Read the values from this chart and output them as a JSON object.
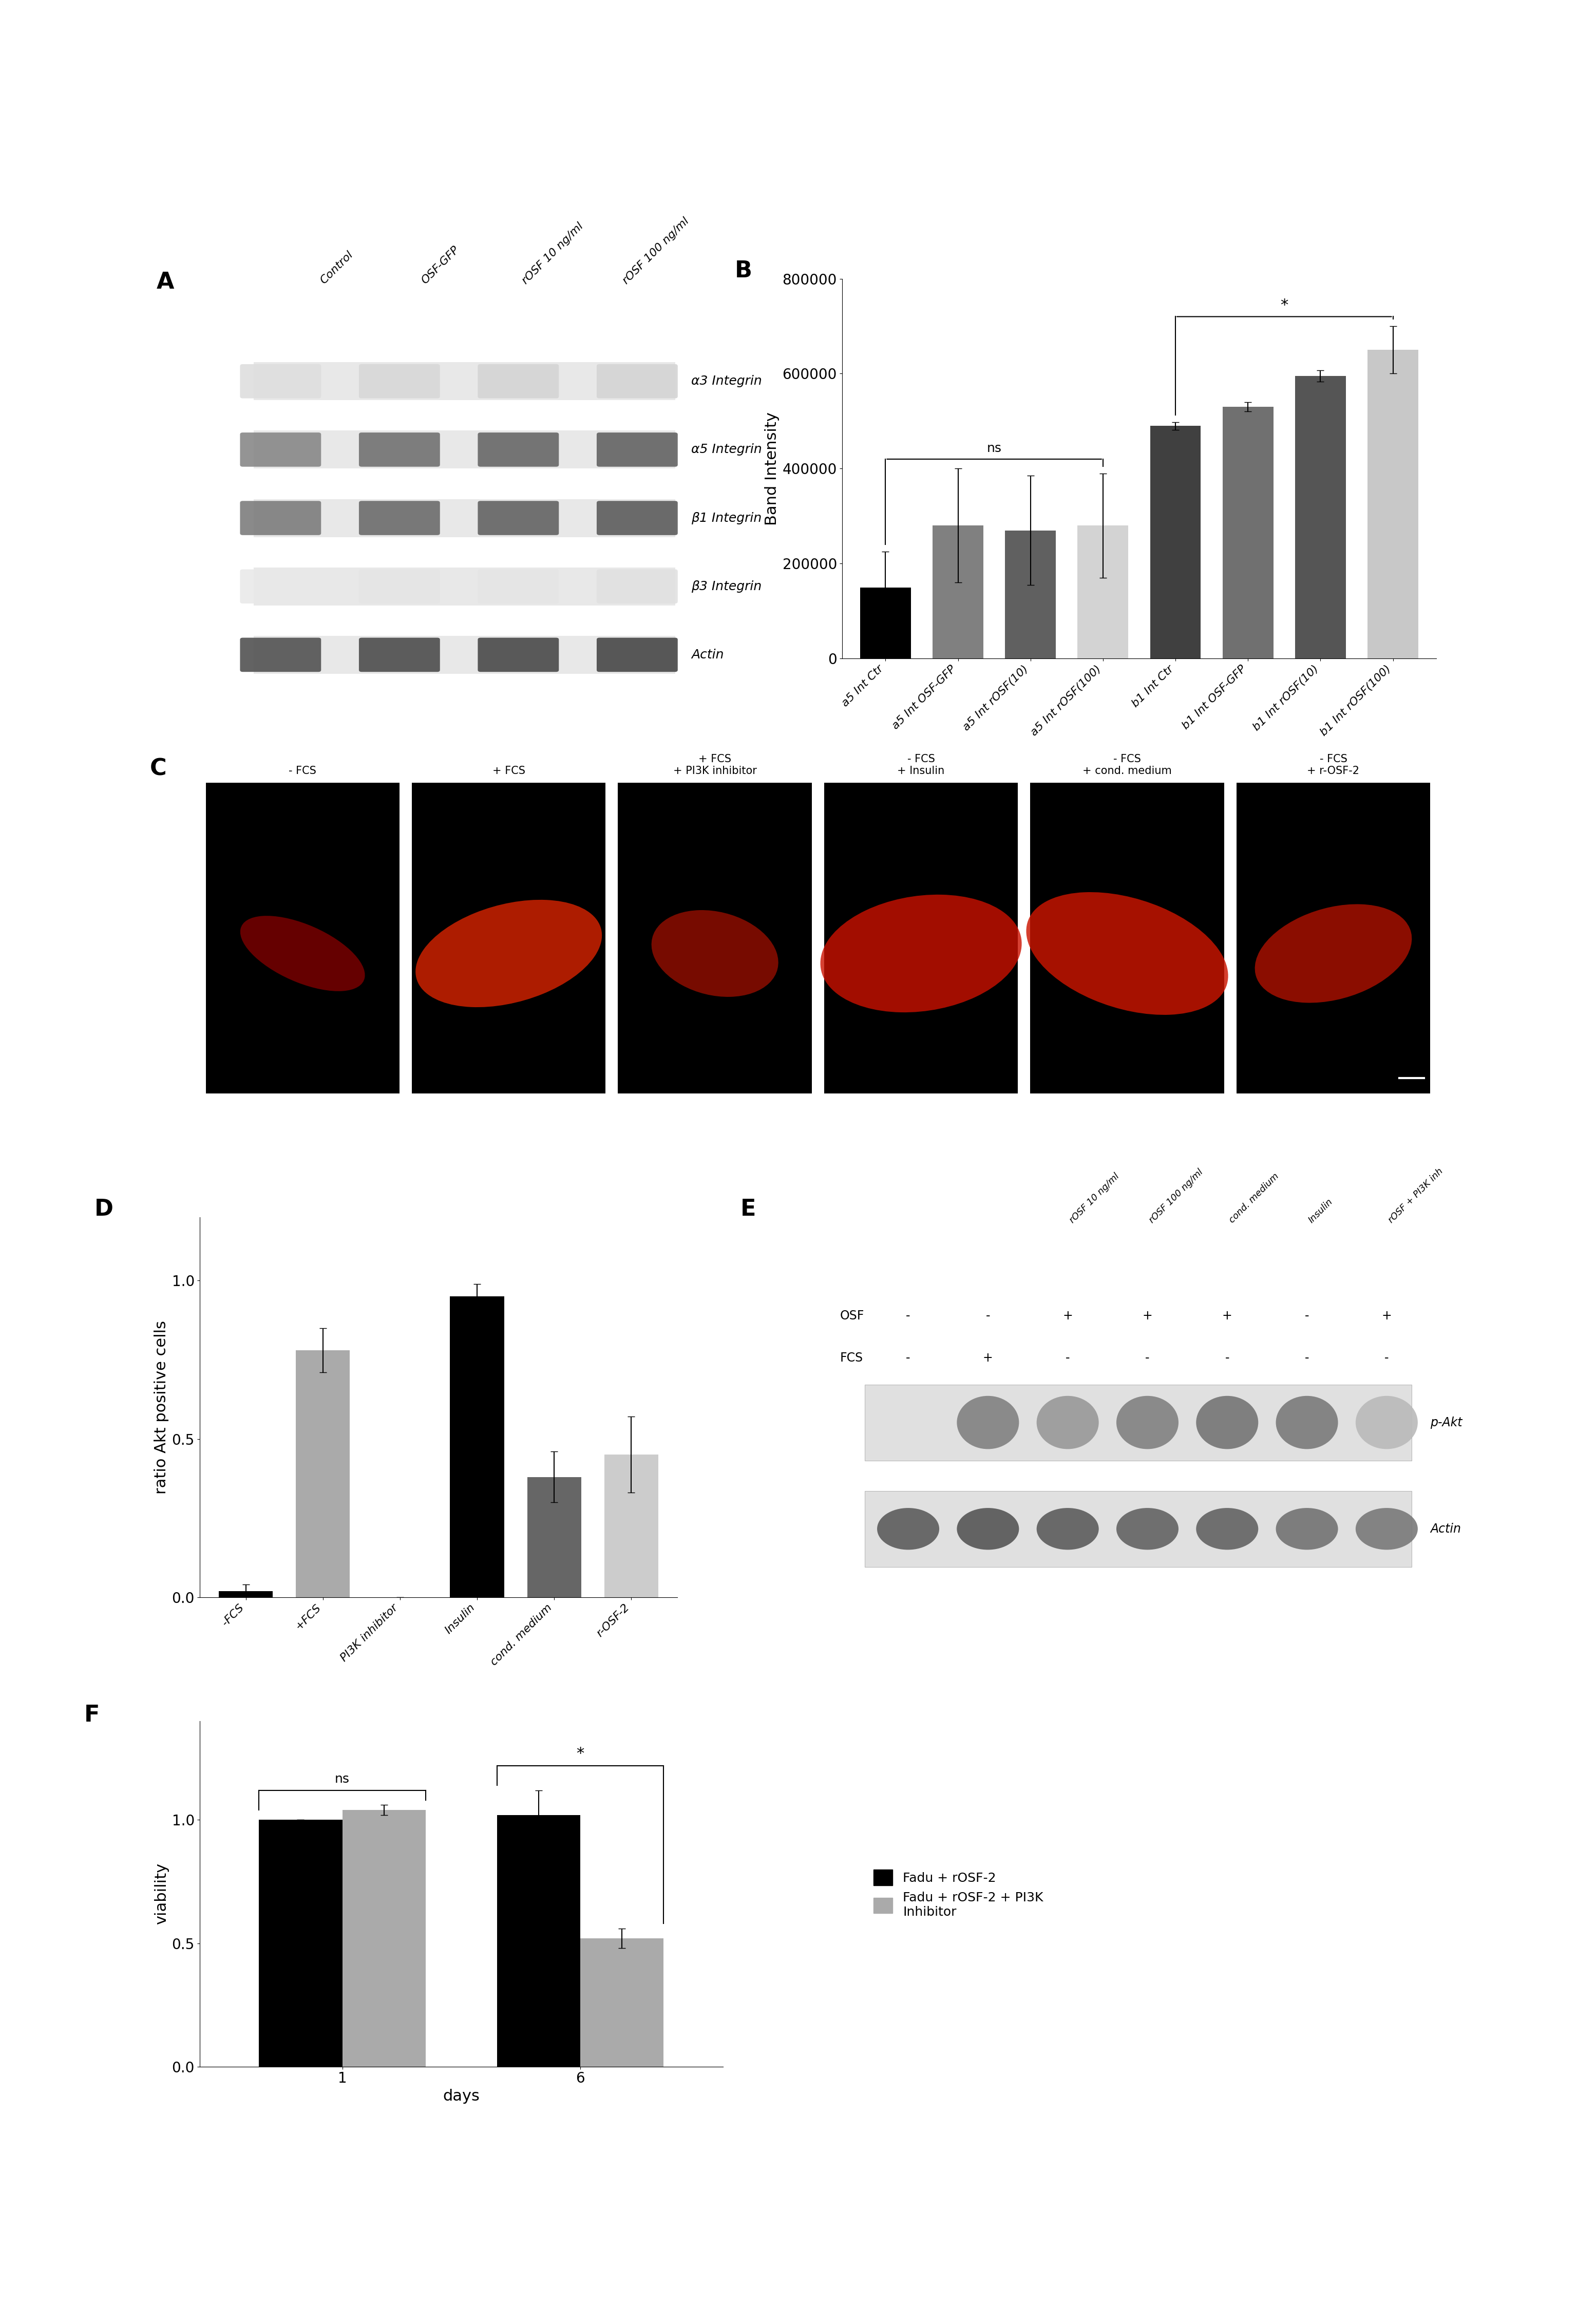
{
  "panel_B": {
    "categories": [
      "a5 Int Ctr",
      "a5 Int OSF-GFP",
      "a5 Int rOSF(10)",
      "a5 Int rOSF(100)",
      "b1 Int Ctr",
      "b1 Int OSF-GFP",
      "b1 Int rOSF(10)",
      "b1 Int rOSF(100)"
    ],
    "values": [
      150000,
      280000,
      270000,
      280000,
      490000,
      530000,
      595000,
      650000
    ],
    "errors": [
      75000,
      120000,
      115000,
      110000,
      8000,
      10000,
      12000,
      50000
    ],
    "colors": [
      "#000000",
      "#808080",
      "#606060",
      "#d3d3d3",
      "#404040",
      "#707070",
      "#555555",
      "#c8c8c8"
    ],
    "ylabel": "Band Intensity",
    "ylim": [
      0,
      800000
    ],
    "yticks": [
      0,
      200000,
      400000,
      600000,
      800000
    ]
  },
  "panel_D": {
    "categories": [
      "-FCS",
      "+FCS",
      "PI3K inhibitor",
      "Insulin",
      "cond. medium",
      "r-OSF-2"
    ],
    "values": [
      0.02,
      0.78,
      0.0,
      0.95,
      0.38,
      0.45
    ],
    "errors": [
      0.02,
      0.07,
      0.0,
      0.04,
      0.08,
      0.12
    ],
    "colors": [
      "#000000",
      "#aaaaaa",
      "#333333",
      "#000000",
      "#666666",
      "#cccccc"
    ],
    "ylabel": "ratio Akt positive cells",
    "ylim": [
      0.0,
      1.2
    ],
    "yticks": [
      0.0,
      0.5,
      1.0
    ]
  },
  "panel_F": {
    "days": [
      1,
      6
    ],
    "black_values": [
      1.0,
      1.02
    ],
    "black_errors": [
      0.0,
      0.1
    ],
    "gray_values": [
      1.04,
      0.52
    ],
    "gray_errors": [
      0.02,
      0.04
    ],
    "ylabel": "viability",
    "xlabel": "days",
    "ylim": [
      0.0,
      1.4
    ],
    "yticks": [
      0.0,
      0.5,
      1.0
    ],
    "legend_black": "Fadu + rOSF-2",
    "legend_gray": "Fadu + rOSF-2 + PI3K\nInhibitor"
  },
  "panel_A": {
    "labels": [
      "α3 Integrin",
      "α5 Integrin",
      "β1 Integrin",
      "β3 Integrin",
      "Actin"
    ],
    "col_labels": [
      "Control",
      "OSF-GFP",
      "rOSF 10 ng/ml",
      "rOSF 100 ng/ml"
    ]
  },
  "panel_C": {
    "labels": [
      "- FCS",
      "+ FCS",
      "+ FCS\n+ PI3K inhibitor",
      "- FCS\n+ Insulin",
      "- FCS\n+ cond. medium",
      "- FCS\n+ r-OSF-2"
    ]
  },
  "panel_E": {
    "col_labels": [
      "rOSF 10 ng/ml",
      "rOSF 100 ng/ml",
      "cond. medium",
      "Insulin",
      "rOSF + PI3K inh"
    ],
    "row_labels": [
      "OSF",
      "FCS"
    ],
    "osf_vals": [
      "-",
      "-",
      "+",
      "+",
      "+",
      "-",
      "+"
    ],
    "fcs_vals": [
      "-",
      "+",
      "-",
      "-",
      "-",
      "-",
      "-"
    ],
    "band_labels": [
      "p-Akt",
      "Actin"
    ]
  },
  "background_color": "#ffffff",
  "label_fontsize": 28,
  "tick_fontsize": 20,
  "axis_label_fontsize": 22
}
